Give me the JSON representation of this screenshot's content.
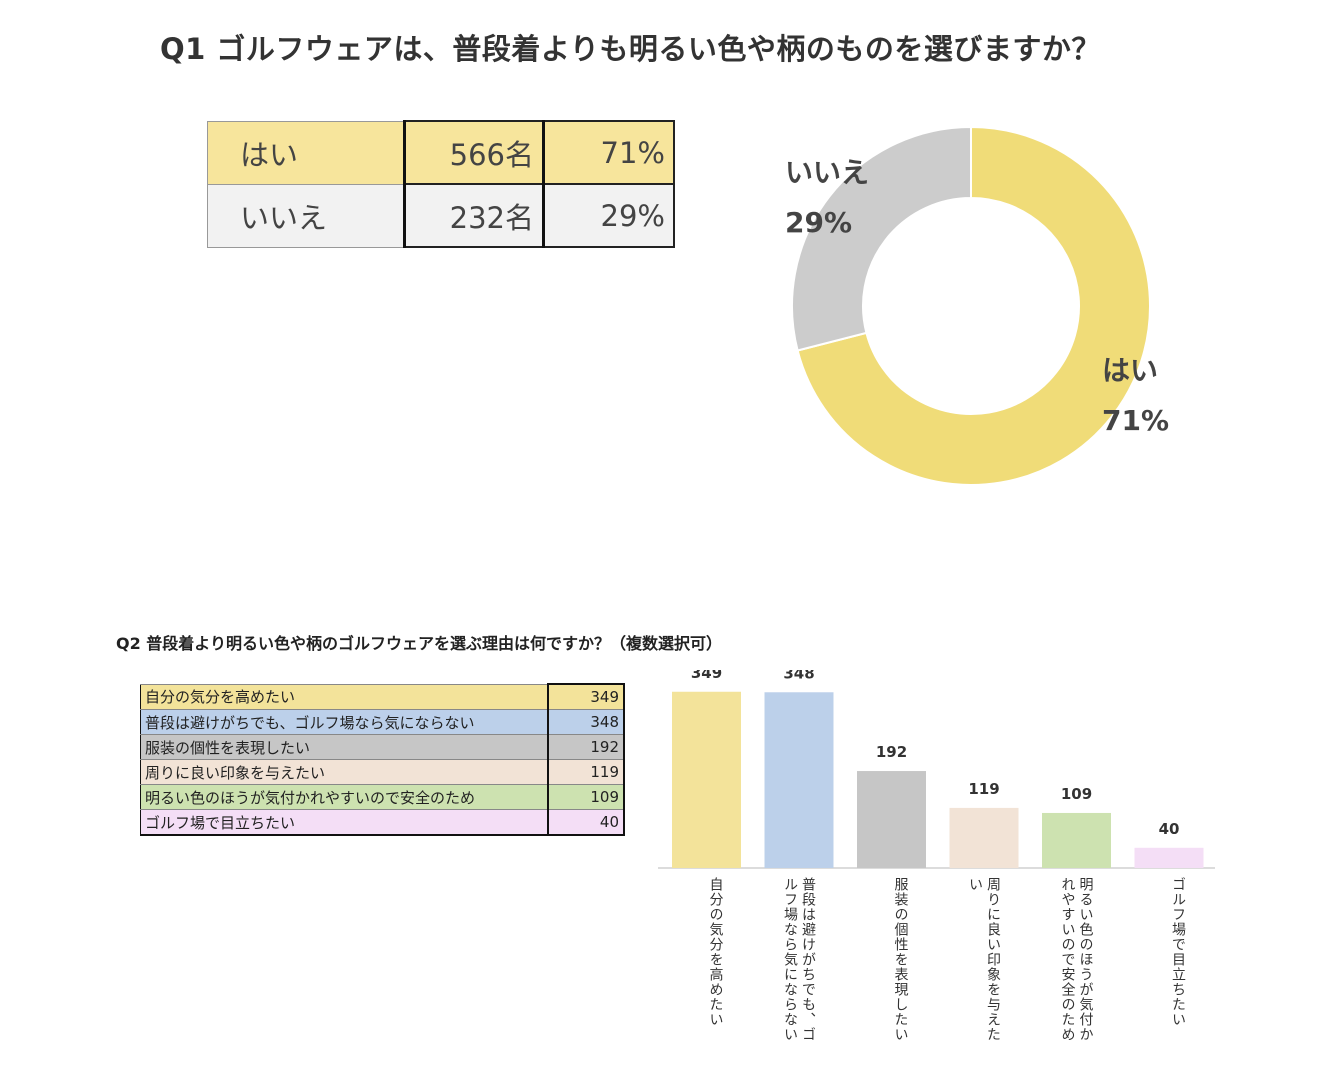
{
  "q1": {
    "title": "Q1 ゴルフウェアは、普段着よりも明るい色や柄のものを選びますか？",
    "table": [
      {
        "label": "はい",
        "count": "566名",
        "pct": "71%"
      },
      {
        "label": "いいえ",
        "count": "232名",
        "pct": "29%"
      }
    ]
  },
  "q2": {
    "title": "Q2 普段着より明るい色や柄のゴルフウェアを選ぶ理由は何ですか？（複数選択可）",
    "table": [
      {
        "label": "自分の気分を高めたい",
        "value": "349"
      },
      {
        "label": "普段は避けがちでも、ゴルフ場なら気にならない",
        "value": "348"
      },
      {
        "label": "服装の個性を表現したい",
        "value": "192"
      },
      {
        "label": "周りに良い印象を与えたい",
        "value": "119"
      },
      {
        "label": "明るい色のほうが気付かれやすいので安全のため",
        "value": "109"
      },
      {
        "label": "ゴルフ場で目立ちたい",
        "value": "40"
      }
    ]
  },
  "colors": {
    "yes": "#f0dc78",
    "no": "#cccccc",
    "bars": [
      "#f3e39a",
      "#bcd0ea",
      "#c6c6c6",
      "#f2e3d6",
      "#cde2b0",
      "#f4def6"
    ]
  },
  "chart_data": [
    {
      "type": "pie",
      "donut": true,
      "labels": [
        "はい",
        "いいえ"
      ],
      "values": [
        71,
        29
      ],
      "display": [
        "はい\n71%",
        "いいえ\n29%"
      ]
    },
    {
      "type": "bar",
      "categories": [
        "自分の気分を高めたい",
        "普段は避けがちでも、ゴルフ場なら気にならない",
        "服装の個性を表現したい",
        "周りに良い印象を与えたい",
        "明るい色のほうが気付かれやすいので安全のため",
        "ゴルフ場で目立ちたい"
      ],
      "values": [
        349,
        348,
        192,
        119,
        109,
        40
      ],
      "ylim": [
        0,
        400
      ],
      "grid": false
    }
  ]
}
